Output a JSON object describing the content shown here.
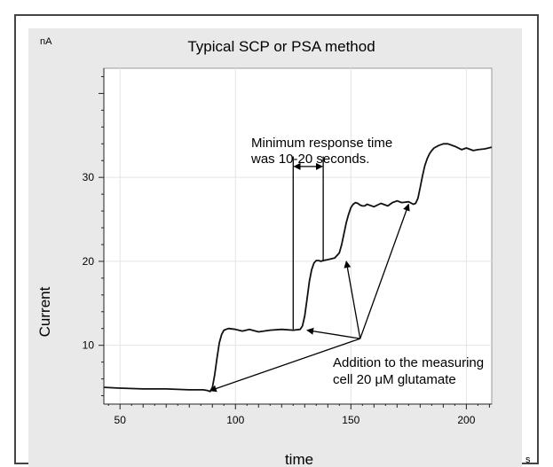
{
  "chart_data": {
    "type": "line",
    "title": "Typical SCP or PSA method",
    "xlabel": "time",
    "ylabel": "Current",
    "x_unit": "s",
    "y_unit": "nA",
    "xlim": [
      43,
      211
    ],
    "ylim": [
      3,
      43
    ],
    "x_ticks": [
      50,
      100,
      150,
      200
    ],
    "y_ticks": [
      10,
      20,
      30
    ],
    "grid": true,
    "series": [
      {
        "x": [
          43,
          50,
          60,
          70,
          80,
          86,
          88,
          89,
          90,
          91,
          92,
          93,
          94,
          95,
          97,
          100,
          103,
          106,
          110,
          115,
          120,
          125,
          128,
          129,
          130,
          131,
          132,
          133,
          134,
          135,
          136,
          137,
          138,
          140,
          143,
          145,
          146,
          147,
          148,
          149,
          150,
          151,
          152,
          153,
          154,
          155,
          156,
          157,
          160,
          163,
          166,
          168,
          170,
          172,
          175,
          177,
          178,
          179,
          180,
          181,
          182,
          183,
          184,
          185,
          186,
          188,
          190,
          192,
          195,
          198,
          200,
          203,
          205,
          208,
          211
        ],
        "y": [
          5.0,
          4.9,
          4.8,
          4.8,
          4.7,
          4.7,
          4.6,
          4.5,
          5.0,
          6.5,
          8.5,
          10.3,
          11.3,
          11.8,
          12.0,
          11.9,
          11.7,
          11.9,
          11.6,
          11.8,
          11.9,
          11.8,
          11.9,
          12.3,
          13.5,
          15.5,
          17.6,
          19.0,
          19.8,
          20.1,
          20.1,
          20.0,
          20.1,
          20.2,
          20.4,
          21.0,
          22.0,
          23.3,
          24.6,
          25.6,
          26.4,
          26.8,
          27.0,
          26.9,
          26.7,
          26.6,
          26.6,
          26.8,
          26.5,
          26.9,
          26.6,
          27.0,
          27.2,
          27.0,
          27.1,
          26.8,
          26.9,
          27.5,
          28.8,
          30.2,
          31.4,
          32.2,
          32.8,
          33.2,
          33.5,
          33.8,
          34.0,
          34.0,
          33.7,
          33.3,
          33.5,
          33.2,
          33.3,
          33.4,
          33.6
        ]
      }
    ],
    "annotations": [
      {
        "lines": [
          "Minimum response time",
          "was 10-20 seconds."
        ]
      },
      {
        "lines": [
          "Addition to the measuring",
          "cell 20 μM glutamate"
        ]
      }
    ],
    "bracket": {
      "x1": 125,
      "x2": 138
    },
    "arrow_source": {
      "x": 154,
      "y": 10.8
    },
    "arrow_targets": [
      {
        "x": 89,
        "y": 4.6
      },
      {
        "x": 131,
        "y": 11.8
      },
      {
        "x": 148,
        "y": 20.0
      },
      {
        "x": 175,
        "y": 26.8
      }
    ]
  }
}
